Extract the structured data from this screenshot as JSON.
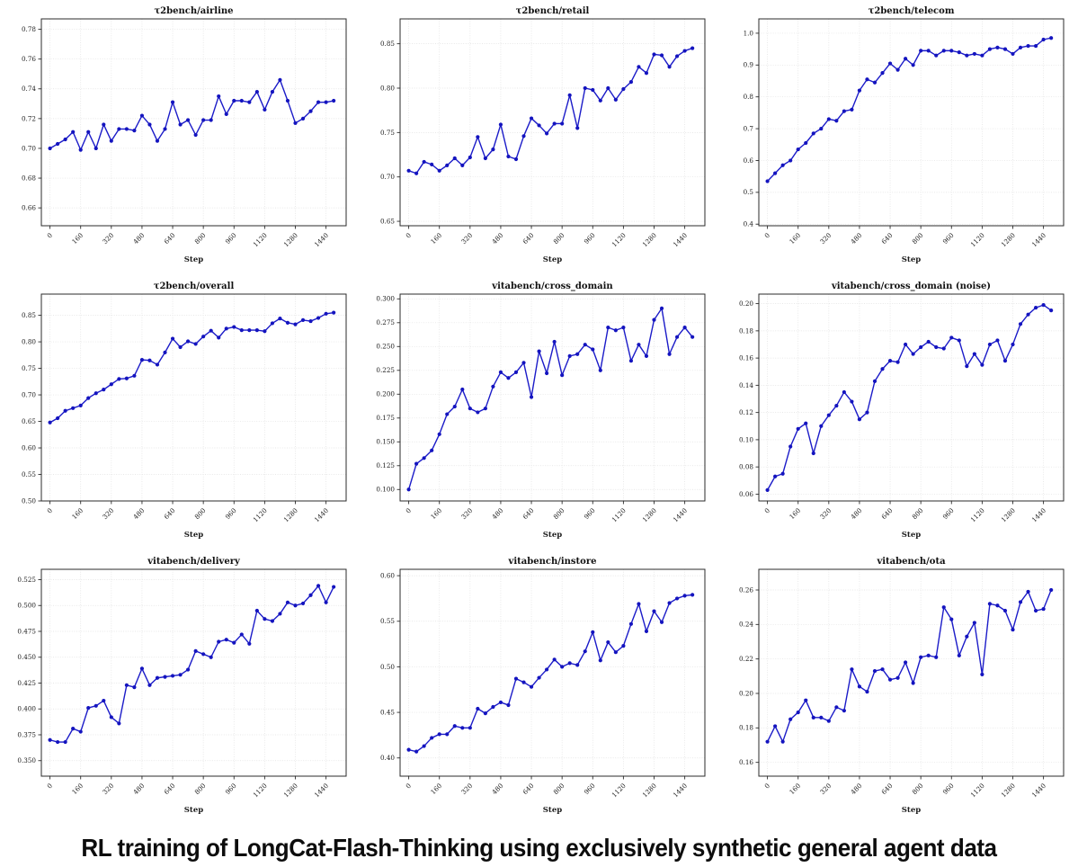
{
  "caption": "RL training of LongCat-Flash-Thinking using exclusively synthetic general agent data",
  "colors": {
    "line": "#1b1bc8",
    "marker": "#1414bf",
    "grid": "#e0e0e0",
    "spine": "#2b2b2b",
    "text": "#1a1a1a"
  },
  "xlabel": "Step",
  "chart_data": [
    {
      "type": "line",
      "title": "τ2bench/airline",
      "xlabel": "Step",
      "x_start": 0,
      "x_step": 40,
      "xlim": [
        -45,
        1545
      ],
      "ylim": [
        0.648,
        0.787
      ],
      "xticks": [
        0,
        160,
        320,
        480,
        640,
        800,
        960,
        1120,
        1280,
        1440
      ],
      "yticks": [
        "0.66",
        "0.68",
        "0.70",
        "0.72",
        "0.74",
        "0.76",
        "0.78"
      ],
      "values": [
        0.7,
        0.703,
        0.706,
        0.711,
        0.699,
        0.711,
        0.7,
        0.716,
        0.705,
        0.713,
        0.713,
        0.712,
        0.722,
        0.716,
        0.705,
        0.713,
        0.731,
        0.716,
        0.719,
        0.709,
        0.719,
        0.719,
        0.735,
        0.723,
        0.732,
        0.732,
        0.731,
        0.738,
        0.726,
        0.738,
        0.746,
        0.732,
        0.717,
        0.72,
        0.725,
        0.731,
        0.731,
        0.732
      ]
    },
    {
      "type": "line",
      "title": "τ2bench/retail",
      "xlabel": "Step",
      "x_start": 0,
      "x_step": 40,
      "xlim": [
        -45,
        1545
      ],
      "ylim": [
        0.645,
        0.878
      ],
      "xticks": [
        0,
        160,
        320,
        480,
        640,
        800,
        960,
        1120,
        1280,
        1440
      ],
      "yticks": [
        "0.65",
        "0.70",
        "0.75",
        "0.80",
        "0.85"
      ],
      "values": [
        0.707,
        0.704,
        0.717,
        0.714,
        0.707,
        0.713,
        0.721,
        0.713,
        0.722,
        0.745,
        0.721,
        0.731,
        0.759,
        0.723,
        0.72,
        0.746,
        0.766,
        0.758,
        0.749,
        0.76,
        0.76,
        0.792,
        0.755,
        0.8,
        0.798,
        0.786,
        0.8,
        0.787,
        0.799,
        0.807,
        0.824,
        0.817,
        0.838,
        0.837,
        0.824,
        0.836,
        0.842,
        0.845
      ]
    },
    {
      "type": "line",
      "title": "τ2bench/telecom",
      "xlabel": "Step",
      "x_start": 0,
      "x_step": 40,
      "xlim": [
        -45,
        1545
      ],
      "ylim": [
        0.395,
        1.045
      ],
      "xticks": [
        0,
        160,
        320,
        480,
        640,
        800,
        960,
        1120,
        1280,
        1440
      ],
      "yticks": [
        "0.4",
        "0.5",
        "0.6",
        "0.7",
        "0.8",
        "0.9",
        "1.0"
      ],
      "values": [
        0.535,
        0.56,
        0.585,
        0.6,
        0.635,
        0.655,
        0.685,
        0.7,
        0.73,
        0.725,
        0.755,
        0.76,
        0.82,
        0.855,
        0.845,
        0.875,
        0.905,
        0.885,
        0.92,
        0.9,
        0.945,
        0.945,
        0.93,
        0.945,
        0.945,
        0.94,
        0.93,
        0.935,
        0.93,
        0.95,
        0.955,
        0.95,
        0.935,
        0.955,
        0.96,
        0.96,
        0.98,
        0.985
      ]
    },
    {
      "type": "line",
      "title": "τ2bench/overall",
      "xlabel": "Step",
      "x_start": 0,
      "x_step": 40,
      "xlim": [
        -45,
        1545
      ],
      "ylim": [
        0.5,
        0.89
      ],
      "xticks": [
        0,
        160,
        320,
        480,
        640,
        800,
        960,
        1120,
        1280,
        1440
      ],
      "yticks": [
        "0.50",
        "0.55",
        "0.60",
        "0.65",
        "0.70",
        "0.75",
        "0.80",
        "0.85"
      ],
      "values": [
        0.648,
        0.656,
        0.67,
        0.675,
        0.68,
        0.694,
        0.703,
        0.71,
        0.72,
        0.73,
        0.731,
        0.736,
        0.766,
        0.765,
        0.757,
        0.78,
        0.806,
        0.79,
        0.801,
        0.796,
        0.81,
        0.821,
        0.808,
        0.825,
        0.828,
        0.822,
        0.822,
        0.822,
        0.82,
        0.835,
        0.844,
        0.836,
        0.833,
        0.841,
        0.839,
        0.845,
        0.853,
        0.855
      ]
    },
    {
      "type": "line",
      "title": "vitabench/cross_domain",
      "xlabel": "Step",
      "x_start": 0,
      "x_step": 40,
      "xlim": [
        -45,
        1545
      ],
      "ylim": [
        0.088,
        0.305
      ],
      "xticks": [
        0,
        160,
        320,
        480,
        640,
        800,
        960,
        1120,
        1280,
        1440
      ],
      "yticks": [
        "0.100",
        "0.125",
        "0.150",
        "0.175",
        "0.200",
        "0.225",
        "0.250",
        "0.275",
        "0.300"
      ],
      "values": [
        0.1,
        0.127,
        0.133,
        0.141,
        0.158,
        0.179,
        0.187,
        0.205,
        0.185,
        0.181,
        0.185,
        0.208,
        0.223,
        0.217,
        0.223,
        0.233,
        0.197,
        0.245,
        0.222,
        0.255,
        0.22,
        0.24,
        0.242,
        0.252,
        0.247,
        0.225,
        0.27,
        0.267,
        0.27,
        0.235,
        0.252,
        0.24,
        0.278,
        0.29,
        0.242,
        0.26,
        0.27,
        0.26
      ]
    },
    {
      "type": "line",
      "title": "vitabench/cross_domain (noise)",
      "xlabel": "Step",
      "x_start": 0,
      "x_step": 40,
      "xlim": [
        -45,
        1545
      ],
      "ylim": [
        0.055,
        0.207
      ],
      "xticks": [
        0,
        160,
        320,
        480,
        640,
        800,
        960,
        1120,
        1280,
        1440
      ],
      "yticks": [
        "0.06",
        "0.08",
        "0.10",
        "0.12",
        "0.14",
        "0.16",
        "0.18",
        "0.20"
      ],
      "values": [
        0.063,
        0.073,
        0.075,
        0.095,
        0.108,
        0.112,
        0.09,
        0.11,
        0.118,
        0.125,
        0.135,
        0.128,
        0.115,
        0.12,
        0.143,
        0.152,
        0.158,
        0.157,
        0.17,
        0.163,
        0.168,
        0.172,
        0.168,
        0.167,
        0.175,
        0.173,
        0.154,
        0.163,
        0.155,
        0.17,
        0.173,
        0.158,
        0.17,
        0.185,
        0.192,
        0.197,
        0.199,
        0.195
      ]
    },
    {
      "type": "line",
      "title": "vitabench/delivery",
      "xlabel": "Step",
      "x_start": 0,
      "x_step": 40,
      "xlim": [
        -45,
        1545
      ],
      "ylim": [
        0.335,
        0.535
      ],
      "xticks": [
        0,
        160,
        320,
        480,
        640,
        800,
        960,
        1120,
        1280,
        1440
      ],
      "yticks": [
        "0.350",
        "0.375",
        "0.400",
        "0.425",
        "0.450",
        "0.475",
        "0.500",
        "0.525"
      ],
      "values": [
        0.37,
        0.368,
        0.368,
        0.381,
        0.378,
        0.401,
        0.403,
        0.408,
        0.392,
        0.386,
        0.423,
        0.421,
        0.439,
        0.423,
        0.43,
        0.431,
        0.432,
        0.433,
        0.438,
        0.456,
        0.453,
        0.45,
        0.465,
        0.467,
        0.464,
        0.472,
        0.463,
        0.495,
        0.487,
        0.485,
        0.492,
        0.503,
        0.5,
        0.502,
        0.51,
        0.519,
        0.503,
        0.518
      ]
    },
    {
      "type": "line",
      "title": "vitabench/instore",
      "xlabel": "Step",
      "x_start": 0,
      "x_step": 40,
      "xlim": [
        -45,
        1545
      ],
      "ylim": [
        0.38,
        0.607
      ],
      "xticks": [
        0,
        160,
        320,
        480,
        640,
        800,
        960,
        1120,
        1280,
        1440
      ],
      "yticks": [
        "0.40",
        "0.45",
        "0.50",
        "0.55",
        "0.60"
      ],
      "values": [
        0.409,
        0.407,
        0.413,
        0.422,
        0.426,
        0.426,
        0.435,
        0.433,
        0.433,
        0.454,
        0.449,
        0.456,
        0.461,
        0.458,
        0.487,
        0.483,
        0.478,
        0.488,
        0.497,
        0.508,
        0.5,
        0.504,
        0.502,
        0.517,
        0.538,
        0.507,
        0.527,
        0.516,
        0.523,
        0.547,
        0.569,
        0.539,
        0.561,
        0.549,
        0.57,
        0.575,
        0.578,
        0.579
      ]
    },
    {
      "type": "line",
      "title": "vitabench/ota",
      "xlabel": "Step",
      "x_start": 0,
      "x_step": 40,
      "xlim": [
        -45,
        1545
      ],
      "ylim": [
        0.152,
        0.272
      ],
      "xticks": [
        0,
        160,
        320,
        480,
        640,
        800,
        960,
        1120,
        1280,
        1440
      ],
      "yticks": [
        "0.16",
        "0.18",
        "0.20",
        "0.22",
        "0.24",
        "0.26"
      ],
      "values": [
        0.172,
        0.181,
        0.172,
        0.185,
        0.189,
        0.196,
        0.186,
        0.186,
        0.184,
        0.192,
        0.19,
        0.214,
        0.204,
        0.201,
        0.213,
        0.214,
        0.208,
        0.209,
        0.218,
        0.206,
        0.221,
        0.222,
        0.221,
        0.25,
        0.243,
        0.222,
        0.233,
        0.241,
        0.211,
        0.252,
        0.251,
        0.248,
        0.237,
        0.253,
        0.259,
        0.248,
        0.249,
        0.26
      ]
    }
  ]
}
